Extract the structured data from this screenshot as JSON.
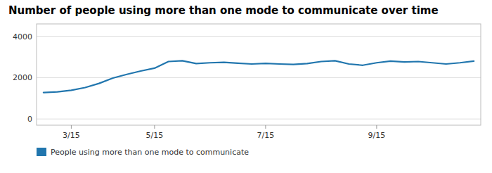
{
  "chart_data": {
    "type": "line",
    "title": "Number of people using more than one mode to communicate over time",
    "x": [
      0,
      1,
      2,
      3,
      4,
      5,
      6,
      7,
      8,
      9,
      10,
      11,
      12,
      13,
      14,
      15,
      16,
      17,
      18,
      19,
      20,
      21,
      22,
      23,
      24,
      25,
      26,
      27,
      28,
      29,
      30,
      31
    ],
    "series": [
      {
        "name": "People using more than one mode to communicate",
        "color": "#2176AE",
        "values": [
          1280,
          1310,
          1390,
          1520,
          1720,
          1980,
          2160,
          2320,
          2460,
          2780,
          2820,
          2680,
          2720,
          2740,
          2700,
          2660,
          2690,
          2660,
          2640,
          2680,
          2780,
          2820,
          2660,
          2600,
          2720,
          2800,
          2760,
          2780,
          2720,
          2660,
          2720,
          2800
        ]
      }
    ],
    "xlim": [
      -0.5,
      31.5
    ],
    "xticks": [
      {
        "value": 2,
        "label": "3/15"
      },
      {
        "value": 8,
        "label": "5/15"
      },
      {
        "value": 16,
        "label": "7/15"
      },
      {
        "value": 24,
        "label": "9/15"
      }
    ],
    "ylim": [
      -300,
      4600
    ],
    "yticks": [
      0,
      2000,
      4000
    ],
    "grid": true,
    "legend": "bottom"
  }
}
